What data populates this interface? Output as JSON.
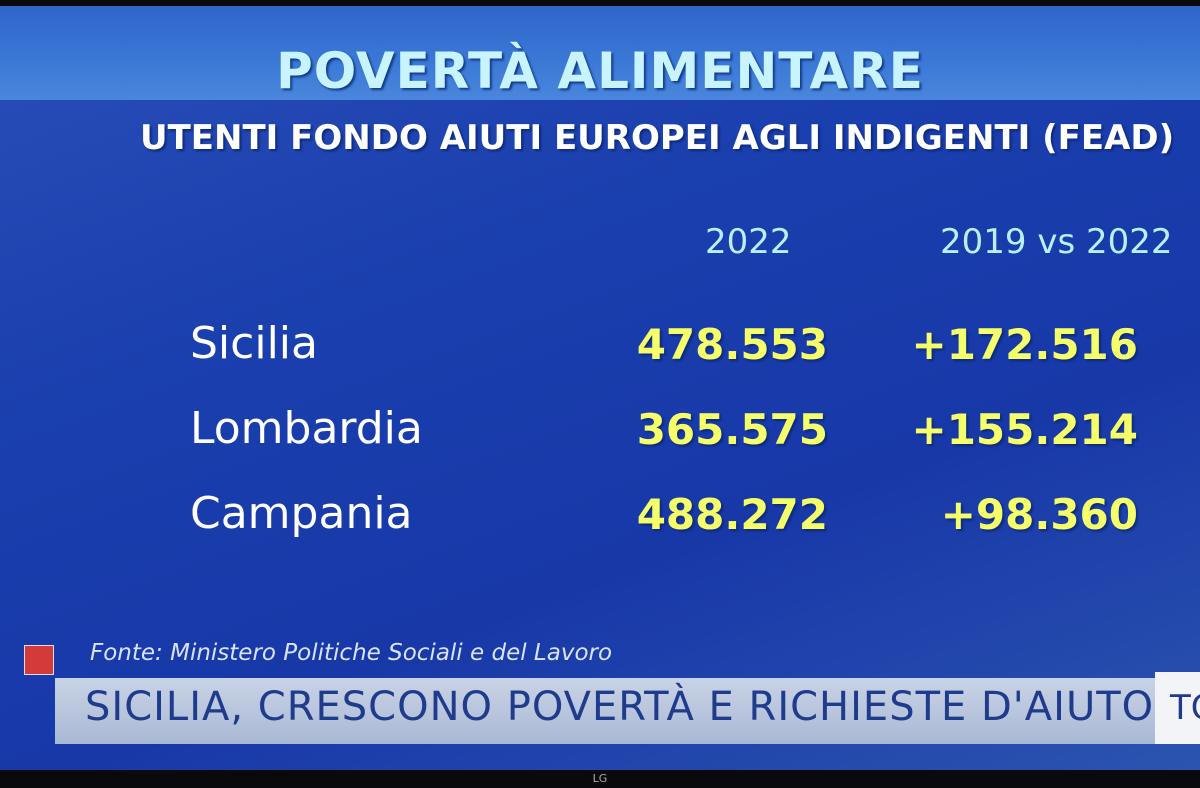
{
  "header": {
    "title": "POVERTÀ ALIMENTARE",
    "subtitle": "UTENTI FONDO AIUTI EUROPEI AGLI INDIGENTI (FEAD)"
  },
  "table": {
    "columns": [
      "2022",
      "2019 vs 2022"
    ],
    "rows": [
      [
        "Sicilia",
        "478.553",
        "+172.516"
      ],
      [
        "Lombardia",
        "365.575",
        "+155.214"
      ],
      [
        "Campania",
        "488.272",
        "+98.360"
      ]
    ]
  },
  "source": "Fonte: Ministero Politiche Sociali e del Lavoro",
  "ticker": {
    "headline": "SICILIA, CRESCONO POVERTÀ E RICHIESTE D'AIUTO",
    "logo": "TO"
  },
  "tv_brand": "LG"
}
